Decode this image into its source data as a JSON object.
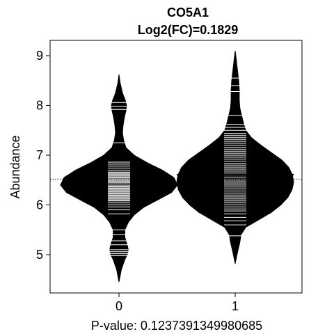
{
  "chart_data": {
    "type": "beanplot",
    "title": "CO5A1",
    "subtitle": "Log2(FC)=0.1829",
    "xlabel": "P-value: 0.1237391349980685",
    "ylabel": "Abundance",
    "categories": [
      "0",
      "1"
    ],
    "yticks": [
      5,
      6,
      7,
      8,
      9
    ],
    "ylim": [
      4.35,
      9.3
    ],
    "overall_mean": 6.52,
    "group_means": [
      6.42,
      6.61
    ],
    "series": [
      {
        "name": "0",
        "density": [
          [
            4.45,
            0.0
          ],
          [
            4.7,
            0.04
          ],
          [
            4.9,
            0.1
          ],
          [
            5.0,
            0.14
          ],
          [
            5.1,
            0.16
          ],
          [
            5.2,
            0.14
          ],
          [
            5.35,
            0.1
          ],
          [
            5.5,
            0.1
          ],
          [
            5.65,
            0.16
          ],
          [
            5.8,
            0.26
          ],
          [
            5.95,
            0.42
          ],
          [
            6.1,
            0.66
          ],
          [
            6.25,
            0.9
          ],
          [
            6.4,
            1.0
          ],
          [
            6.55,
            0.94
          ],
          [
            6.7,
            0.74
          ],
          [
            6.85,
            0.48
          ],
          [
            7.0,
            0.26
          ],
          [
            7.15,
            0.12
          ],
          [
            7.3,
            0.08
          ],
          [
            7.45,
            0.06
          ],
          [
            7.6,
            0.07
          ],
          [
            7.75,
            0.09
          ],
          [
            7.9,
            0.12
          ],
          [
            8.0,
            0.13
          ],
          [
            8.1,
            0.11
          ],
          [
            8.25,
            0.06
          ],
          [
            8.45,
            0.02
          ],
          [
            8.62,
            0.0
          ]
        ],
        "points": [
          4.98,
          5.02,
          5.06,
          5.1,
          5.2,
          5.28,
          5.4,
          5.5,
          5.82,
          5.9,
          5.96,
          6.0,
          6.04,
          6.08,
          6.1,
          6.12,
          6.14,
          6.16,
          6.18,
          6.2,
          6.22,
          6.24,
          6.26,
          6.28,
          6.3,
          6.32,
          6.34,
          6.36,
          6.38,
          6.4,
          6.42,
          6.44,
          6.46,
          6.48,
          6.5,
          6.52,
          6.54,
          6.56,
          6.58,
          6.6,
          6.62,
          6.64,
          6.66,
          6.7,
          6.74,
          6.78,
          6.82,
          6.86,
          7.25,
          7.92,
          7.98,
          8.06
        ]
      },
      {
        "name": "1",
        "density": [
          [
            4.82,
            0.0
          ],
          [
            5.05,
            0.04
          ],
          [
            5.25,
            0.08
          ],
          [
            5.4,
            0.1
          ],
          [
            5.55,
            0.18
          ],
          [
            5.7,
            0.4
          ],
          [
            5.85,
            0.62
          ],
          [
            6.0,
            0.78
          ],
          [
            6.15,
            0.9
          ],
          [
            6.3,
            0.97
          ],
          [
            6.45,
            1.0
          ],
          [
            6.6,
            0.98
          ],
          [
            6.75,
            0.92
          ],
          [
            6.9,
            0.8
          ],
          [
            7.05,
            0.62
          ],
          [
            7.2,
            0.44
          ],
          [
            7.35,
            0.28
          ],
          [
            7.5,
            0.18
          ],
          [
            7.65,
            0.14
          ],
          [
            7.8,
            0.11
          ],
          [
            7.95,
            0.08
          ],
          [
            8.1,
            0.07
          ],
          [
            8.3,
            0.07
          ],
          [
            8.5,
            0.06
          ],
          [
            8.7,
            0.04
          ],
          [
            8.9,
            0.02
          ],
          [
            9.1,
            0.0
          ]
        ],
        "points": [
          5.38,
          5.6,
          5.68,
          5.75,
          5.82,
          5.88,
          5.92,
          5.96,
          6.0,
          6.04,
          6.08,
          6.12,
          6.16,
          6.2,
          6.24,
          6.28,
          6.32,
          6.36,
          6.4,
          6.44,
          6.48,
          6.52,
          6.56,
          6.6,
          6.64,
          6.68,
          6.72,
          6.76,
          6.8,
          6.84,
          6.88,
          6.92,
          6.96,
          7.0,
          7.04,
          7.08,
          7.12,
          7.16,
          7.2,
          7.24,
          7.28,
          7.32,
          7.36,
          7.4,
          7.44,
          7.5,
          7.56,
          7.62,
          7.8,
          8.28,
          8.4,
          8.55
        ]
      }
    ]
  }
}
